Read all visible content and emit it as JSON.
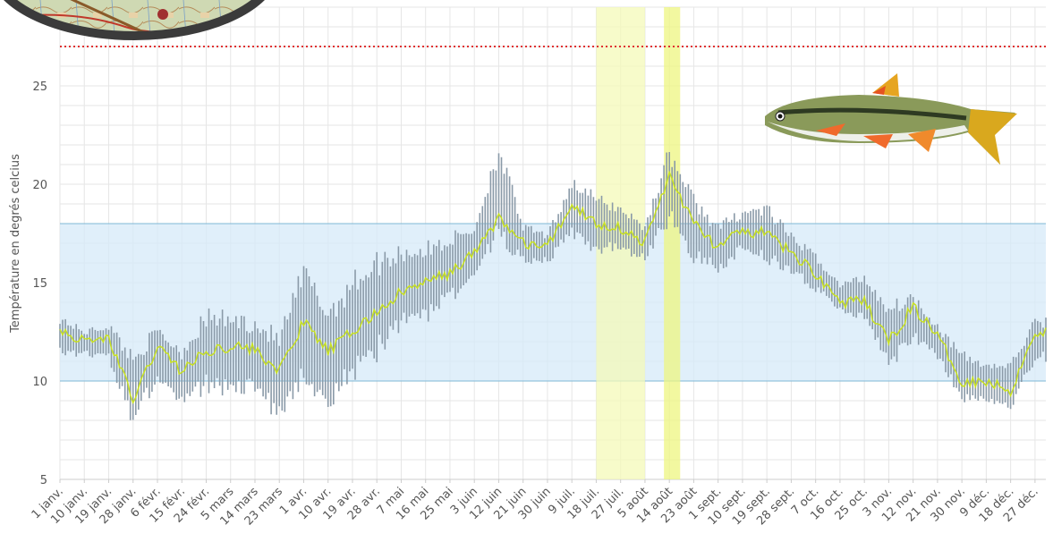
{
  "chart_data": {
    "type": "line",
    "title": "",
    "ylabel": "Température en degrés celcius",
    "xlabel": "",
    "ylim": [
      5,
      29
    ],
    "yticks": [
      5,
      10,
      15,
      20,
      25
    ],
    "grid": true,
    "day_count": 365,
    "x_tick_labels": [
      "1 janv.",
      "10 janv.",
      "19 janv.",
      "28 janv.",
      "6 févr.",
      "15 févr.",
      "24 févr.",
      "5 mars",
      "14 mars",
      "23 mars",
      "1 avr.",
      "10 avr.",
      "19 avr.",
      "28 avr.",
      "7 mai",
      "16 mai",
      "25 mai",
      "3 juin",
      "12 juin",
      "21 juin",
      "30 juin",
      "9 juil.",
      "18 juil.",
      "27 juil.",
      "5 août",
      "14 août",
      "23 août",
      "1 sept.",
      "10 sept.",
      "19 sept.",
      "28 sept.",
      "7 oct.",
      "16 oct.",
      "25 oct.",
      "3 nov.",
      "12 nov.",
      "21 nov.",
      "30 nov.",
      "9 déc.",
      "18 déc.",
      "27 déc."
    ],
    "threshold_line": {
      "y": 27,
      "color": "#e03030"
    },
    "preferred_band": {
      "from": 10,
      "to": 18,
      "color": "#d6e9f8"
    },
    "highlight_periods": [
      {
        "from": "18 juil.",
        "to": "5 août",
        "color": "#f4f9b8"
      },
      {
        "from": "12 août",
        "to": "18 août",
        "color": "#edf580"
      }
    ],
    "series": [
      {
        "color": "#8a9aa8",
        "role": "daily_range",
        "keypoints": [
          {
            "x": "1 janv.",
            "low": 11.2,
            "high": 13.4
          },
          {
            "x": "10 janv.",
            "low": 11.3,
            "high": 12.6
          },
          {
            "x": "19 janv.",
            "low": 11.0,
            "high": 13.0
          },
          {
            "x": "28 janv.",
            "low": 7.6,
            "high": 11.5
          },
          {
            "x": "6 févr.",
            "low": 10.0,
            "high": 12.8
          },
          {
            "x": "15 févr.",
            "low": 8.5,
            "high": 11.8
          },
          {
            "x": "24 févr.",
            "low": 9.5,
            "high": 13.6
          },
          {
            "x": "5 mars",
            "low": 9.3,
            "high": 13.5
          },
          {
            "x": "14 mars",
            "low": 9.2,
            "high": 13.3
          },
          {
            "x": "23 mars",
            "low": 8.0,
            "high": 12.5
          },
          {
            "x": "1 avr.",
            "low": 10.0,
            "high": 16.0
          },
          {
            "x": "10 avr.",
            "low": 8.0,
            "high": 14.0
          },
          {
            "x": "19 avr.",
            "low": 10.0,
            "high": 15.5
          },
          {
            "x": "28 avr.",
            "low": 11.0,
            "high": 16.5
          },
          {
            "x": "7 mai",
            "low": 12.5,
            "high": 17.0
          },
          {
            "x": "16 mai",
            "low": 13.0,
            "high": 17.0
          },
          {
            "x": "25 mai",
            "low": 14.0,
            "high": 17.5
          },
          {
            "x": "3 juin",
            "low": 15.0,
            "high": 18.0
          },
          {
            "x": "12 juin",
            "low": 17.0,
            "high": 22.3
          },
          {
            "x": "21 juin",
            "low": 16.0,
            "high": 18.0
          },
          {
            "x": "30 juin",
            "low": 16.0,
            "high": 17.5
          },
          {
            "x": "9 juil.",
            "low": 17.2,
            "high": 20.4
          },
          {
            "x": "18 juil.",
            "low": 16.5,
            "high": 19.5
          },
          {
            "x": "27 juil.",
            "low": 16.5,
            "high": 19.0
          },
          {
            "x": "5 août",
            "low": 16.0,
            "high": 18.0
          },
          {
            "x": "14 août",
            "low": 18.0,
            "high": 22.0
          },
          {
            "x": "23 août",
            "low": 16.0,
            "high": 19.5
          },
          {
            "x": "1 sept.",
            "low": 15.5,
            "high": 18.0
          },
          {
            "x": "10 sept.",
            "low": 16.5,
            "high": 18.8
          },
          {
            "x": "19 sept.",
            "low": 16.0,
            "high": 19.0
          },
          {
            "x": "28 sept.",
            "low": 15.5,
            "high": 17.5
          },
          {
            "x": "7 oct.",
            "low": 14.5,
            "high": 16.5
          },
          {
            "x": "16 oct.",
            "low": 13.5,
            "high": 15.0
          },
          {
            "x": "25 oct.",
            "low": 13.0,
            "high": 15.5
          },
          {
            "x": "3 nov.",
            "low": 10.5,
            "high": 14.0
          },
          {
            "x": "12 nov.",
            "low": 12.0,
            "high": 14.5
          },
          {
            "x": "21 nov.",
            "low": 11.0,
            "high": 13.0
          },
          {
            "x": "30 nov.",
            "low": 9.0,
            "high": 11.5
          },
          {
            "x": "9 déc.",
            "low": 8.8,
            "high": 11.0
          },
          {
            "x": "18 déc.",
            "low": 8.5,
            "high": 11.0
          },
          {
            "x": "27 déc.",
            "low": 11.0,
            "high": 13.2
          }
        ]
      },
      {
        "color": "#c8e022",
        "role": "daily_mean",
        "values": [
          {
            "x": "1 janv.",
            "y": 12.6
          },
          {
            "x": "10 janv.",
            "y": 12.0
          },
          {
            "x": "19 janv.",
            "y": 12.2
          },
          {
            "x": "28 janv.",
            "y": 9.0
          },
          {
            "x": "6 févr.",
            "y": 11.8
          },
          {
            "x": "15 févr.",
            "y": 10.5
          },
          {
            "x": "24 févr.",
            "y": 11.5
          },
          {
            "x": "5 mars",
            "y": 11.8
          },
          {
            "x": "14 mars",
            "y": 11.6
          },
          {
            "x": "23 mars",
            "y": 10.5
          },
          {
            "x": "1 avr.",
            "y": 13.0
          },
          {
            "x": "10 avr.",
            "y": 11.5
          },
          {
            "x": "19 avr.",
            "y": 12.5
          },
          {
            "x": "28 avr.",
            "y": 13.5
          },
          {
            "x": "7 mai",
            "y": 14.5
          },
          {
            "x": "16 mai",
            "y": 15.0
          },
          {
            "x": "25 mai",
            "y": 15.5
          },
          {
            "x": "3 juin",
            "y": 16.5
          },
          {
            "x": "12 juin",
            "y": 18.3
          },
          {
            "x": "21 juin",
            "y": 17.0
          },
          {
            "x": "30 juin",
            "y": 16.8
          },
          {
            "x": "9 juil.",
            "y": 19.0
          },
          {
            "x": "18 juil.",
            "y": 18.0
          },
          {
            "x": "27 juil.",
            "y": 17.8
          },
          {
            "x": "5 août",
            "y": 17.0
          },
          {
            "x": "14 août",
            "y": 20.5
          },
          {
            "x": "23 août",
            "y": 18.0
          },
          {
            "x": "1 sept.",
            "y": 16.8
          },
          {
            "x": "10 sept.",
            "y": 17.6
          },
          {
            "x": "19 sept.",
            "y": 17.5
          },
          {
            "x": "28 sept.",
            "y": 16.5
          },
          {
            "x": "7 oct.",
            "y": 15.5
          },
          {
            "x": "16 oct.",
            "y": 14.0
          },
          {
            "x": "25 oct.",
            "y": 14.0
          },
          {
            "x": "3 nov.",
            "y": 12.0
          },
          {
            "x": "12 nov.",
            "y": 13.8
          },
          {
            "x": "21 nov.",
            "y": 12.3
          },
          {
            "x": "30 nov.",
            "y": 10.0
          },
          {
            "x": "9 déc.",
            "y": 10.0
          },
          {
            "x": "18 déc.",
            "y": 9.5
          },
          {
            "x": "27 déc.",
            "y": 12.5
          }
        ]
      }
    ]
  },
  "decorations": {
    "map_inset": "topographic-map-magnifier",
    "fish_illustration": "minnow-fish-illustration"
  }
}
